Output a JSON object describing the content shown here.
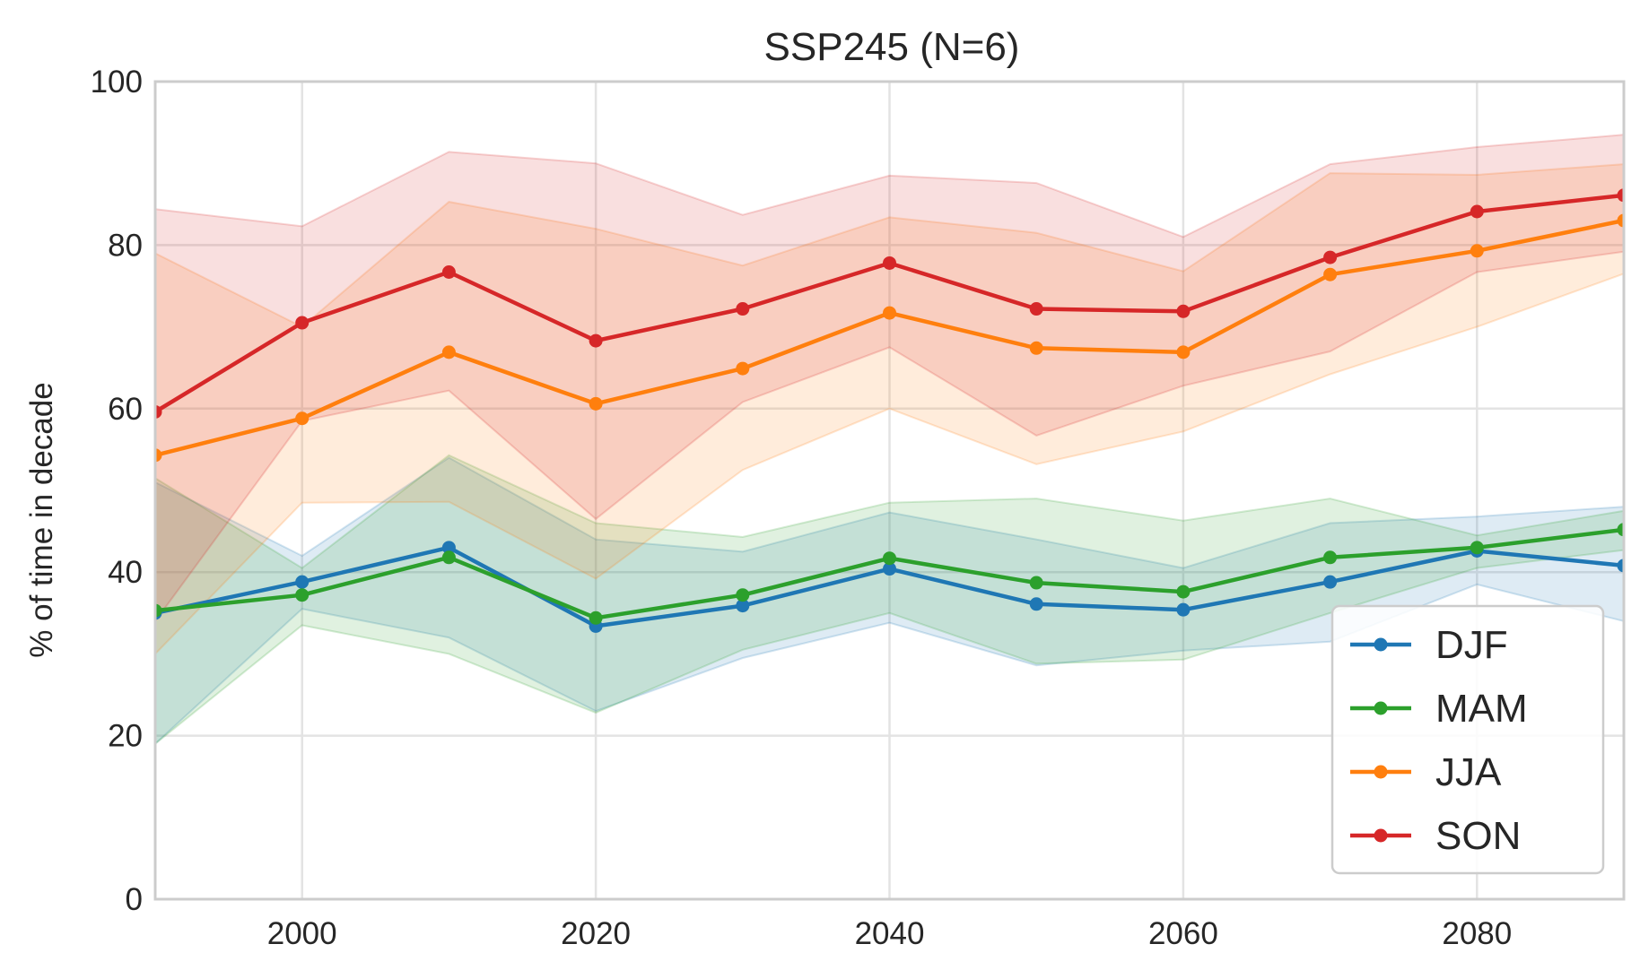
{
  "chart_data": {
    "type": "line",
    "title": "SSP245 (N=6)",
    "xlabel": "",
    "ylabel": "% of time in decade",
    "xlim": [
      1990,
      2090
    ],
    "ylim": [
      0,
      100
    ],
    "xticks": [
      2000,
      2020,
      2040,
      2060,
      2080
    ],
    "yticks": [
      0,
      20,
      40,
      60,
      80,
      100
    ],
    "grid": true,
    "legend_position": "lower-right",
    "x": [
      1990,
      2000,
      2010,
      2020,
      2030,
      2040,
      2050,
      2060,
      2070,
      2080,
      2090
    ],
    "series": [
      {
        "name": "DJF",
        "color": "#1f77b4",
        "values": [
          35,
          38.8,
          43,
          33.4,
          35.9,
          40.4,
          36.1,
          35.4,
          38.8,
          42.6,
          40.8
        ],
        "lower": [
          19,
          35.5,
          32,
          23,
          29.5,
          33.8,
          28.6,
          30.4,
          31.5,
          38.5,
          34
        ],
        "upper": [
          51,
          42,
          54,
          44,
          42.5,
          47.3,
          44,
          40.5,
          46,
          46.8,
          48
        ]
      },
      {
        "name": "MAM",
        "color": "#2ca02c",
        "values": [
          35.3,
          37.2,
          41.8,
          34.4,
          37.2,
          41.7,
          38.7,
          37.6,
          41.8,
          43,
          45.2
        ],
        "lower": [
          19,
          33.5,
          30,
          22.8,
          30.5,
          35,
          28.8,
          29.3,
          35,
          40.5,
          42.7
        ],
        "upper": [
          51.5,
          40.5,
          54.3,
          46,
          44.3,
          48.5,
          49,
          46.3,
          49,
          44.5,
          47.5
        ]
      },
      {
        "name": "JJA",
        "color": "#ff7f0e",
        "values": [
          54.3,
          58.8,
          66.9,
          60.6,
          64.9,
          71.7,
          67.4,
          66.9,
          76.4,
          79.3,
          83
        ],
        "lower": [
          30,
          48.5,
          48.6,
          39.2,
          52.5,
          60,
          53.2,
          57.2,
          64.2,
          70,
          76.5
        ],
        "upper": [
          79,
          70,
          85.3,
          82,
          77.5,
          83.4,
          81.5,
          76.8,
          88.8,
          88.6,
          89.9
        ]
      },
      {
        "name": "SON",
        "color": "#d62728",
        "values": [
          59.6,
          70.5,
          76.7,
          68.3,
          72.2,
          77.8,
          72.2,
          71.9,
          78.5,
          84.1,
          86.1
        ],
        "lower": [
          34,
          58.5,
          62.2,
          46.5,
          60.8,
          67.5,
          56.7,
          62.8,
          67,
          76.7,
          79.2
        ],
        "upper": [
          84.4,
          82.3,
          91.4,
          90,
          83.7,
          88.5,
          87.6,
          81,
          89.9,
          92,
          93.5
        ]
      }
    ]
  }
}
